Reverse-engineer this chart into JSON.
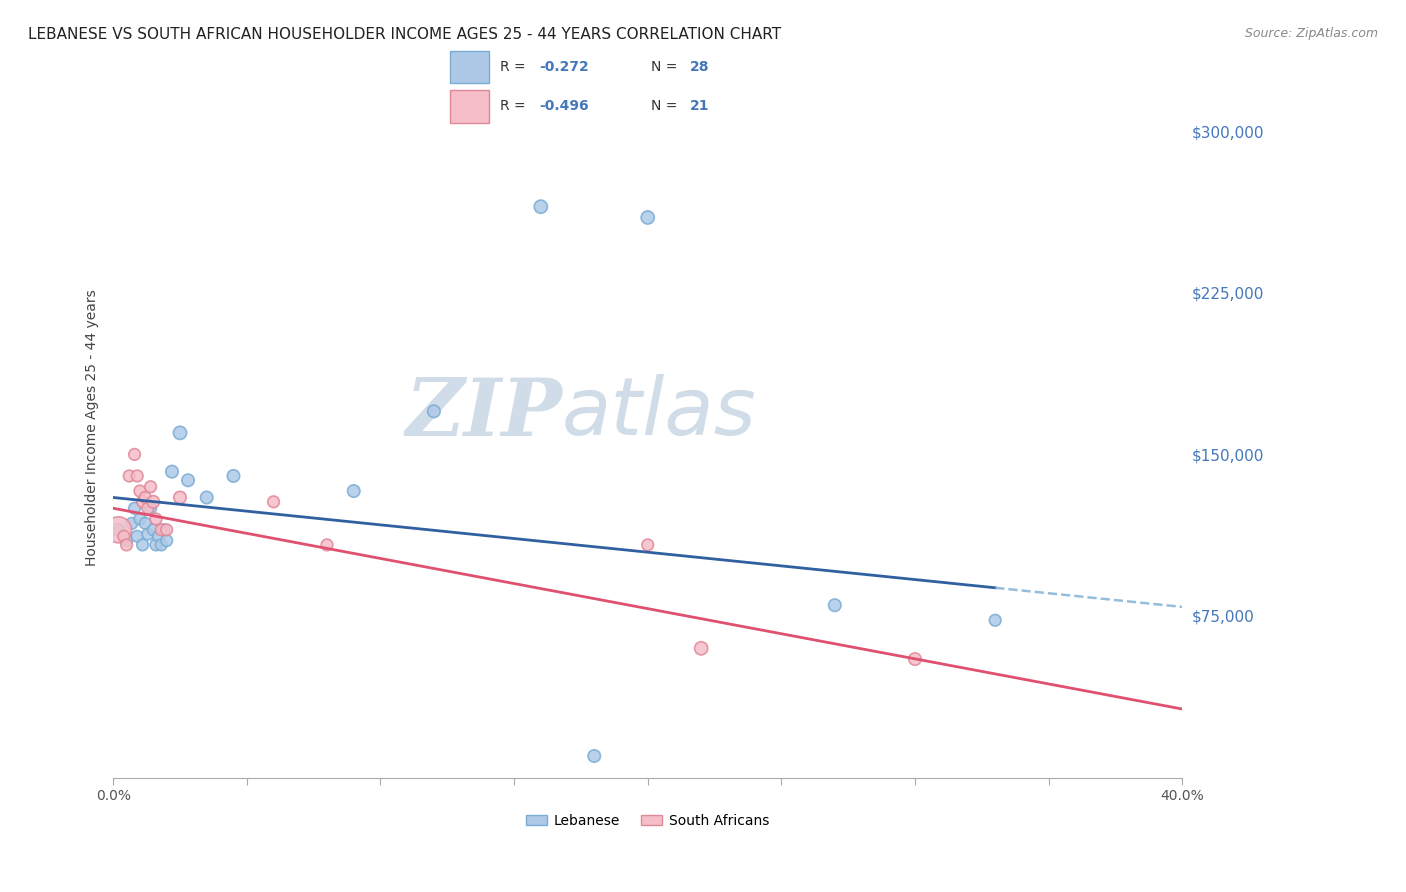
{
  "title": "LEBANESE VS SOUTH AFRICAN HOUSEHOLDER INCOME AGES 25 - 44 YEARS CORRELATION CHART",
  "source": "Source: ZipAtlas.com",
  "ylabel": "Householder Income Ages 25 - 44 years",
  "xlim": [
    0.0,
    0.4
  ],
  "ylim": [
    0,
    325000
  ],
  "yticks": [
    75000,
    150000,
    225000,
    300000
  ],
  "ytick_labels": [
    "$75,000",
    "$150,000",
    "$225,000",
    "$300,000"
  ],
  "xticks": [
    0.0,
    0.05,
    0.1,
    0.15,
    0.2,
    0.25,
    0.3,
    0.35,
    0.4
  ],
  "xtick_labels": [
    "0.0%",
    "",
    "",
    "",
    "",
    "",
    "",
    "",
    "40.0%"
  ],
  "lebanese_x": [
    0.002,
    0.005,
    0.007,
    0.008,
    0.009,
    0.01,
    0.011,
    0.012,
    0.013,
    0.014,
    0.015,
    0.016,
    0.017,
    0.018,
    0.019,
    0.02,
    0.022,
    0.025,
    0.028,
    0.035,
    0.045,
    0.09,
    0.12,
    0.16,
    0.2,
    0.27,
    0.33,
    0.18
  ],
  "lebanese_y": [
    115000,
    110000,
    118000,
    125000,
    112000,
    120000,
    108000,
    118000,
    113000,
    125000,
    115000,
    108000,
    112000,
    108000,
    115000,
    110000,
    142000,
    160000,
    138000,
    130000,
    140000,
    133000,
    170000,
    265000,
    260000,
    80000,
    73000,
    10000
  ],
  "lebanese_sizes": [
    80,
    70,
    70,
    70,
    70,
    70,
    70,
    70,
    70,
    70,
    70,
    70,
    70,
    70,
    70,
    70,
    80,
    90,
    80,
    80,
    80,
    80,
    80,
    90,
    90,
    80,
    70,
    80
  ],
  "south_african_x": [
    0.002,
    0.004,
    0.006,
    0.008,
    0.009,
    0.01,
    0.011,
    0.012,
    0.013,
    0.014,
    0.015,
    0.016,
    0.018,
    0.02,
    0.025,
    0.06,
    0.08,
    0.2,
    0.22,
    0.3,
    0.005
  ],
  "south_african_y": [
    115000,
    112000,
    140000,
    150000,
    140000,
    133000,
    128000,
    130000,
    125000,
    135000,
    128000,
    120000,
    115000,
    115000,
    130000,
    128000,
    108000,
    108000,
    60000,
    55000,
    108000
  ],
  "south_african_sizes": [
    350,
    70,
    70,
    70,
    70,
    70,
    70,
    70,
    70,
    70,
    80,
    70,
    70,
    70,
    80,
    70,
    70,
    70,
    90,
    80,
    70
  ],
  "lebanese_color": "#aec9e8",
  "lebanese_edge_color": "#7aadd4",
  "south_african_color": "#f5bec8",
  "south_african_edge_color": "#e08898",
  "trend_blue_color": "#3060a0",
  "trend_pink_color": "#e05070",
  "trend_dashed_color": "#7aadd4",
  "legend_label_blue": "Lebanese",
  "legend_label_pink": "South Africans",
  "watermark_zip": "ZIP",
  "watermark_atlas": "atlas",
  "watermark_color": "#d0dce8",
  "grid_color": "#cccccc",
  "axis_label_color": "#4477bb",
  "tick_label_color": "#4477bb",
  "title_fontsize": 11,
  "axis_label_fontsize": 10
}
